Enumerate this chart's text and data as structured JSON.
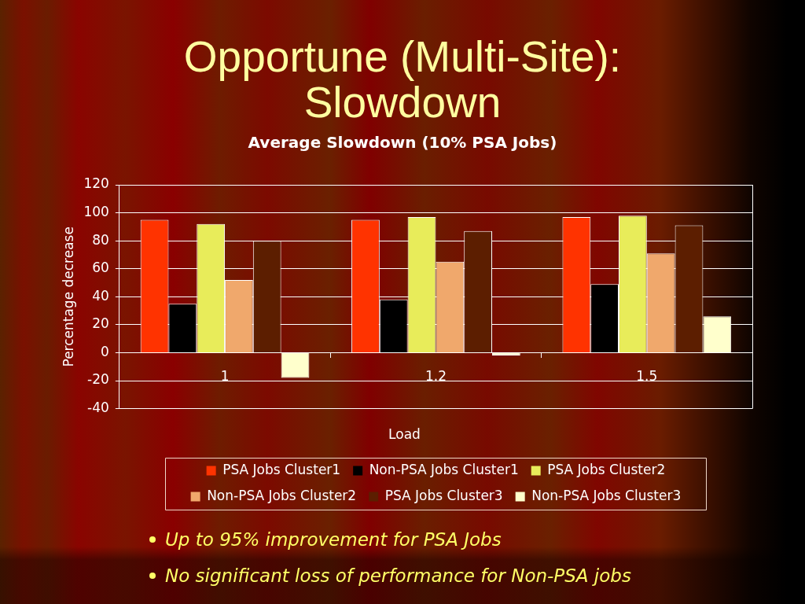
{
  "chart_data": {
    "type": "bar",
    "title": "Opportune (Multi-Site): Slowdown",
    "subtitle": "Average Slowdown (10% PSA Jobs)",
    "xlabel": "Load",
    "ylabel": "Percentage decrease",
    "categories": [
      "1",
      "1.2",
      "1.5"
    ],
    "series": [
      {
        "name": "PSA Jobs Cluster1",
        "color": "#ff3300",
        "values": [
          95,
          95,
          97
        ]
      },
      {
        "name": "Non-PSA Jobs Cluster1",
        "color": "#000000",
        "values": [
          35,
          38,
          49
        ]
      },
      {
        "name": "PSA Jobs Cluster2",
        "color": "#e8ec5a",
        "values": [
          92,
          97,
          98
        ]
      },
      {
        "name": "Non-PSA Jobs Cluster2",
        "color": "#f0a86c",
        "values": [
          52,
          65,
          71
        ]
      },
      {
        "name": "PSA Jobs Cluster3",
        "color": "#5c1e00",
        "values": [
          80,
          87,
          91
        ]
      },
      {
        "name": "Non-PSA Jobs Cluster3",
        "color": "#ffffcc",
        "values": [
          -18,
          -2,
          26
        ]
      }
    ],
    "ylim": [
      -40,
      120
    ],
    "yticks": [
      -40,
      -20,
      0,
      20,
      40,
      60,
      80,
      100,
      120
    ],
    "grid": "y",
    "legend": "bottom",
    "annotations": [
      "Up to 95% improvement for PSA Jobs",
      "No significant loss of performance for Non-PSA jobs"
    ]
  }
}
